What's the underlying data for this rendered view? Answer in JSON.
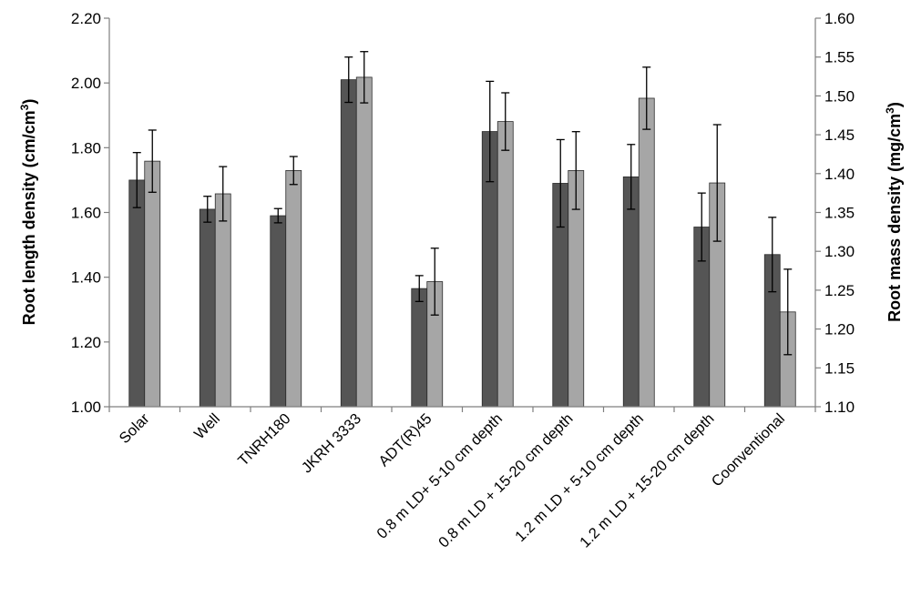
{
  "chart_data": {
    "type": "bar",
    "title": "",
    "categories": [
      "Solar",
      "Well",
      "TNRH180",
      "JKRH 3333",
      "ADT(R)45",
      "0.8 m LD+ 5-10 cm depth",
      "0.8 m LD + 15-20 cm depth",
      "1.2 m LD + 5-10 cm depth",
      "1.2 m LD + 15-20 cm depth",
      "Coonventional"
    ],
    "series": [
      {
        "axis": "left",
        "color": "#555555",
        "values": [
          1.7,
          1.61,
          1.59,
          2.01,
          1.365,
          1.85,
          1.69,
          1.71,
          1.555,
          1.47
        ],
        "errors": [
          0.085,
          0.04,
          0.022,
          0.07,
          0.04,
          0.155,
          0.135,
          0.1,
          0.105,
          0.115
        ]
      },
      {
        "axis": "right",
        "color": "#a6a6a6",
        "values": [
          1.416,
          1.374,
          1.404,
          1.524,
          1.261,
          1.467,
          1.404,
          1.497,
          1.388,
          1.222
        ],
        "errors": [
          0.04,
          0.035,
          0.018,
          0.033,
          0.043,
          0.037,
          0.05,
          0.04,
          0.075,
          0.055
        ]
      }
    ],
    "left_axis": {
      "label_main": "Root length density (cm/cm",
      "label_sup": "3",
      "label_end": ")",
      "min": 1.0,
      "max": 2.2,
      "ticks": [
        "1.00",
        "1.20",
        "1.40",
        "1.60",
        "1.80",
        "2.00",
        "2.20"
      ]
    },
    "right_axis": {
      "label_main": "Root mass density (mg/cm",
      "label_sup": "3",
      "label_end": ")",
      "min": 1.1,
      "max": 1.6,
      "ticks": [
        "1.10",
        "1.15",
        "1.20",
        "1.25",
        "1.30",
        "1.35",
        "1.40",
        "1.45",
        "1.50",
        "1.55",
        "1.60"
      ]
    },
    "grid": false,
    "legend": "none"
  }
}
